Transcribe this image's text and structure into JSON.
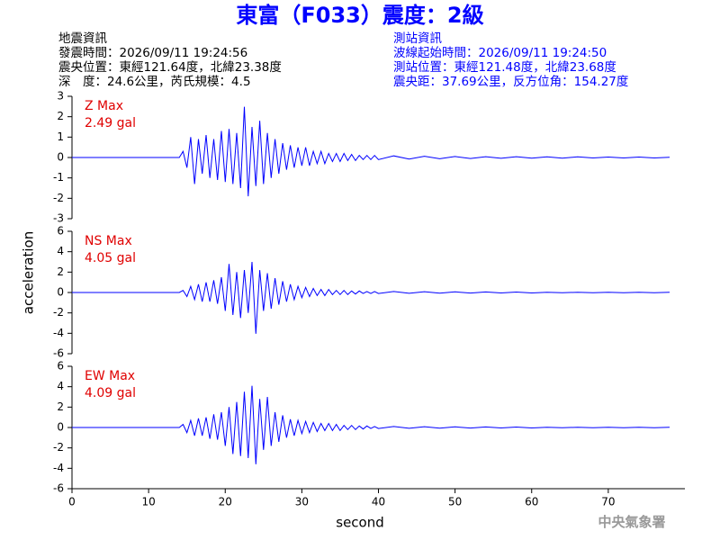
{
  "header": {
    "title": "東富（F033）震度：2級",
    "left": {
      "heading": "地震資訊",
      "lines": [
        "發震時間：2026/09/11 19:24:56",
        "震央位置：東經121.64度，北緯23.38度",
        "深　度：24.6公里，芮氏規模：4.5"
      ]
    },
    "right": {
      "heading": "測站資訊",
      "lines": [
        "波線起始時間：2026/09/11 19:24:50",
        "測站位置：東經121.48度，北緯23.68度",
        "震央距：37.69公里，反方位角：154.27度"
      ]
    },
    "footer": "中央氣象署"
  },
  "chart_data": [
    {
      "type": "line",
      "annotation": "Z Max",
      "max_label": "2.49 gal",
      "x": [
        0,
        14,
        14.5,
        15,
        15.5,
        16,
        16.5,
        17,
        17.5,
        18,
        18.5,
        19,
        19.5,
        20,
        20.5,
        21,
        21.5,
        22,
        22.5,
        23,
        23.5,
        24,
        24.5,
        25,
        25.5,
        26,
        26.5,
        27,
        27.5,
        28,
        28.5,
        29,
        29.5,
        30,
        30.5,
        31,
        31.5,
        32,
        32.5,
        33,
        33.5,
        34,
        34.5,
        35,
        35.5,
        36,
        36.5,
        37,
        37.5,
        38,
        38.5,
        39,
        39.5,
        40,
        42,
        44,
        46,
        48,
        50,
        52,
        54,
        56,
        58,
        60,
        62,
        64,
        66,
        68,
        70,
        72,
        74,
        76,
        78
      ],
      "series": [
        {
          "color": "#0000ff",
          "values": [
            0,
            0,
            0.3,
            -0.5,
            1.0,
            -1.3,
            0.9,
            -0.8,
            1.1,
            -1.0,
            0.9,
            -1.1,
            1.3,
            -1.2,
            1.4,
            -1.3,
            1.2,
            -1.5,
            2.49,
            -1.9,
            1.5,
            -1.4,
            1.8,
            -1.3,
            1.2,
            -1.0,
            0.9,
            -0.8,
            0.7,
            -0.6,
            0.6,
            -0.5,
            0.5,
            -0.4,
            0.5,
            -0.4,
            0.3,
            -0.3,
            0.3,
            -0.3,
            0.2,
            -0.2,
            0.2,
            -0.2,
            0.2,
            -0.15,
            0.15,
            -0.15,
            0.1,
            -0.1,
            0.1,
            -0.1,
            0.1,
            -0.1,
            0.08,
            -0.08,
            0.06,
            -0.06,
            0.05,
            -0.05,
            0.04,
            -0.04,
            0.04,
            -0.03,
            0.03,
            -0.03,
            0.03,
            -0.02,
            0.02,
            -0.02,
            0.02,
            -0.02,
            0.01
          ]
        }
      ],
      "xlim": [
        0,
        80
      ],
      "ylim": [
        -3,
        3
      ],
      "yticks": [
        -3,
        -2,
        -1,
        0,
        1,
        2,
        3
      ]
    },
    {
      "type": "line",
      "annotation": "NS Max",
      "max_label": "4.05 gal",
      "ylabel": "acceleration",
      "x": [
        0,
        14,
        14.5,
        15,
        15.5,
        16,
        16.5,
        17,
        17.5,
        18,
        18.5,
        19,
        19.5,
        20,
        20.5,
        21,
        21.5,
        22,
        22.5,
        23,
        23.5,
        24,
        24.5,
        25,
        25.5,
        26,
        26.5,
        27,
        27.5,
        28,
        28.5,
        29,
        29.5,
        30,
        30.5,
        31,
        31.5,
        32,
        32.5,
        33,
        33.5,
        34,
        34.5,
        35,
        35.5,
        36,
        36.5,
        37,
        37.5,
        38,
        38.5,
        39,
        39.5,
        40,
        42,
        44,
        46,
        48,
        50,
        52,
        54,
        56,
        58,
        60,
        62,
        64,
        66,
        68,
        70,
        72,
        74,
        76,
        78
      ],
      "series": [
        {
          "color": "#0000ff",
          "values": [
            0,
            0,
            0.2,
            -0.4,
            0.6,
            -0.7,
            0.8,
            -0.9,
            1.0,
            -0.9,
            1.2,
            -1.1,
            1.5,
            -1.8,
            2.8,
            -2.2,
            2.0,
            -2.5,
            2.2,
            -2.0,
            3.0,
            -4.05,
            2.2,
            -1.8,
            1.9,
            -1.6,
            1.4,
            -1.2,
            1.1,
            -0.9,
            0.8,
            -0.7,
            0.6,
            -0.5,
            0.5,
            -0.4,
            0.4,
            -0.3,
            0.3,
            -0.3,
            0.3,
            -0.2,
            0.2,
            -0.2,
            0.2,
            -0.2,
            0.15,
            -0.15,
            0.15,
            -0.1,
            0.1,
            -0.1,
            0.1,
            -0.1,
            0.1,
            -0.08,
            0.08,
            -0.06,
            0.06,
            -0.05,
            0.05,
            -0.04,
            0.04,
            -0.04,
            0.03,
            -0.03,
            0.03,
            -0.03,
            0.02,
            -0.02,
            0.02,
            -0.02,
            0.02
          ]
        }
      ],
      "xlim": [
        0,
        80
      ],
      "ylim": [
        -6,
        6
      ],
      "yticks": [
        -6,
        -4,
        -2,
        0,
        2,
        4,
        6
      ]
    },
    {
      "type": "line",
      "annotation": "EW Max",
      "max_label": "4.09 gal",
      "xlabel": "second",
      "x": [
        0,
        14,
        14.5,
        15,
        15.5,
        16,
        16.5,
        17,
        17.5,
        18,
        18.5,
        19,
        19.5,
        20,
        20.5,
        21,
        21.5,
        22,
        22.5,
        23,
        23.5,
        24,
        24.5,
        25,
        25.5,
        26,
        26.5,
        27,
        27.5,
        28,
        28.5,
        29,
        29.5,
        30,
        30.5,
        31,
        31.5,
        32,
        32.5,
        33,
        33.5,
        34,
        34.5,
        35,
        35.5,
        36,
        36.5,
        37,
        37.5,
        38,
        38.5,
        39,
        39.5,
        40,
        42,
        44,
        46,
        48,
        50,
        52,
        54,
        56,
        58,
        60,
        62,
        64,
        66,
        68,
        70,
        72,
        74,
        76,
        78
      ],
      "series": [
        {
          "color": "#0000ff",
          "values": [
            0,
            0,
            0.3,
            -0.5,
            0.7,
            -0.8,
            0.9,
            -0.8,
            1.0,
            -1.1,
            1.3,
            -1.2,
            1.5,
            -1.8,
            2.0,
            -2.6,
            2.5,
            -2.8,
            3.5,
            -3.0,
            4.09,
            -3.6,
            2.8,
            -2.2,
            3.0,
            -1.8,
            1.5,
            -1.4,
            1.2,
            -1.0,
            0.8,
            -0.8,
            0.7,
            -0.6,
            0.6,
            -0.5,
            0.5,
            -0.4,
            0.4,
            -0.3,
            0.4,
            -0.3,
            0.3,
            -0.3,
            0.2,
            -0.2,
            0.2,
            -0.2,
            0.15,
            -0.15,
            0.15,
            -0.1,
            0.1,
            -0.1,
            0.1,
            -0.08,
            0.08,
            -0.06,
            0.06,
            -0.05,
            0.05,
            -0.04,
            0.04,
            -0.04,
            0.03,
            -0.03,
            0.03,
            -0.03,
            0.02,
            -0.02,
            0.02,
            -0.02,
            0.02
          ]
        }
      ],
      "xlim": [
        0,
        80
      ],
      "ylim": [
        -6,
        6
      ],
      "yticks": [
        -6,
        -4,
        -2,
        0,
        2,
        4,
        6
      ],
      "xticks": [
        0,
        10,
        20,
        30,
        40,
        50,
        60,
        70
      ]
    }
  ]
}
